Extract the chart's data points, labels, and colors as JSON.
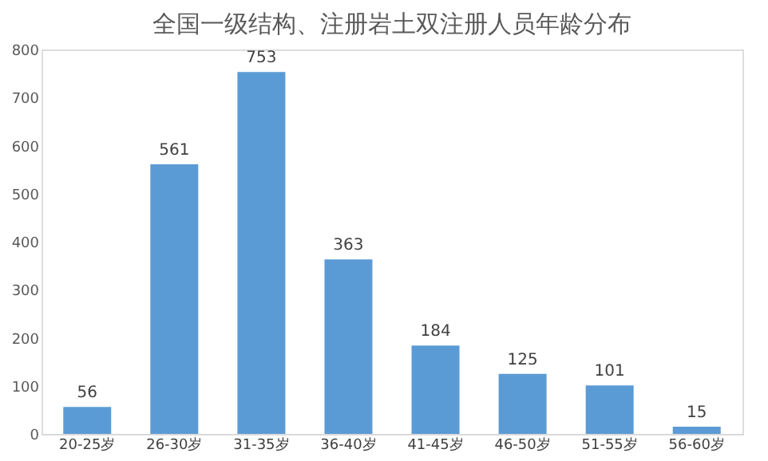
{
  "chart_data": {
    "type": "bar",
    "title": "全国一级结构、注册岩土双注册人员年龄分布",
    "categories": [
      "20-25岁",
      "26-30岁",
      "31-35岁",
      "36-40岁",
      "41-45岁",
      "46-50岁",
      "51-55岁",
      "56-60岁"
    ],
    "values": [
      56,
      561,
      753,
      363,
      184,
      125,
      101,
      15
    ],
    "color": "#5b9bd5",
    "ylim": [
      0,
      800
    ],
    "yticks": [
      0,
      100,
      200,
      300,
      400,
      500,
      600,
      700,
      800
    ],
    "data_labels": true,
    "grid": false
  }
}
